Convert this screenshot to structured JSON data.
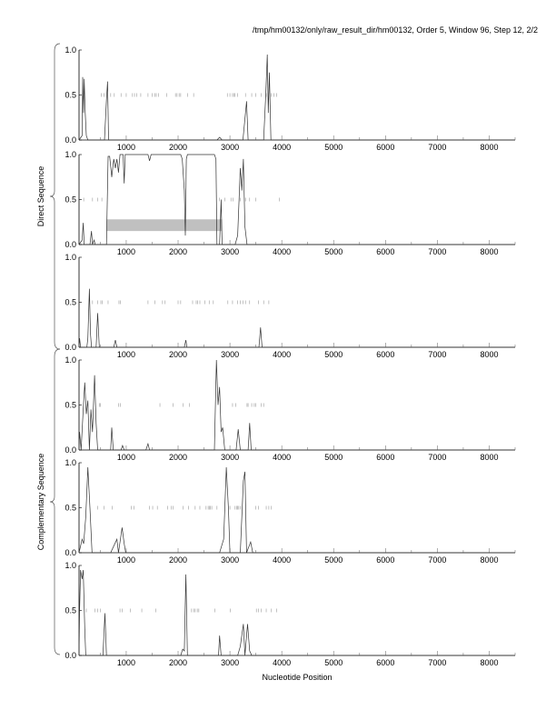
{
  "title": "/tmp/hm00132/only/raw_result_dir/hm00132, Order 5, Window 96, Step 12, 2/2",
  "chart_data": {
    "type": "line",
    "xlabel": "Nucleotide Position",
    "xlim": [
      90,
      8500
    ],
    "ylim": [
      0,
      1
    ],
    "xticks": [
      1000,
      2000,
      3000,
      4000,
      5000,
      6000,
      7000,
      8000
    ],
    "xtick_labels": [
      "1000",
      "2000",
      "3000",
      "4000",
      "5000",
      "6000",
      "7000",
      "8000"
    ],
    "yticks": [
      0,
      0.5,
      1
    ],
    "ytick_labels": [
      "0.0",
      "0.5",
      "1.0"
    ],
    "groups": [
      {
        "label": "Direct Sequence",
        "panels": [
          0,
          1,
          2
        ]
      },
      {
        "label": "Complementary Sequence",
        "panels": [
          3,
          4,
          5
        ]
      }
    ],
    "line_color": "#333333",
    "marker_color": "#999999",
    "region_color": "#c0c0c0",
    "panels": [
      {
        "points": [
          [
            90,
            0
          ],
          [
            150,
            0.05
          ],
          [
            160,
            0.7
          ],
          [
            175,
            0.3
          ],
          [
            190,
            0.68
          ],
          [
            205,
            0.35
          ],
          [
            230,
            0.05
          ],
          [
            260,
            0
          ],
          [
            580,
            0
          ],
          [
            620,
            0.45
          ],
          [
            640,
            0.65
          ],
          [
            660,
            0
          ],
          [
            2750,
            0
          ],
          [
            2800,
            0.03
          ],
          [
            2850,
            0
          ],
          [
            3250,
            0
          ],
          [
            3320,
            0.43
          ],
          [
            3350,
            0
          ],
          [
            3650,
            0
          ],
          [
            3690,
            0.5
          ],
          [
            3720,
            0.95
          ],
          [
            3740,
            0.3
          ],
          [
            3760,
            0.75
          ],
          [
            3790,
            0
          ],
          [
            8500,
            0
          ]
        ],
        "stop_markers": [
          520,
          570,
          700,
          770,
          900,
          1000,
          1120,
          1160,
          1200,
          1280,
          1420,
          1500,
          1550,
          1580,
          1620,
          1780,
          1950,
          1980,
          2020,
          2050,
          2180,
          2300,
          2950,
          3000,
          3050,
          3080,
          3100,
          3150,
          3300,
          3420,
          3500,
          3600,
          3700,
          3800,
          3850,
          3900
        ],
        "regions": []
      },
      {
        "points": [
          [
            90,
            0
          ],
          [
            150,
            0.05
          ],
          [
            170,
            0.24
          ],
          [
            190,
            0
          ],
          [
            300,
            0
          ],
          [
            330,
            0.15
          ],
          [
            350,
            0
          ],
          [
            380,
            0.05
          ],
          [
            400,
            0
          ],
          [
            620,
            0
          ],
          [
            650,
            0.98
          ],
          [
            680,
            0.98
          ],
          [
            720,
            0.75
          ],
          [
            760,
            0.95
          ],
          [
            790,
            0.85
          ],
          [
            820,
            0.95
          ],
          [
            850,
            0.8
          ],
          [
            880,
            1
          ],
          [
            940,
            1
          ],
          [
            960,
            0.68
          ],
          [
            980,
            1
          ],
          [
            1420,
            1
          ],
          [
            1450,
            0.93
          ],
          [
            1480,
            1
          ],
          [
            2050,
            1
          ],
          [
            2080,
            0.95
          ],
          [
            2120,
            0.6
          ],
          [
            2140,
            0.1
          ],
          [
            2160,
            0.95
          ],
          [
            2180,
            1
          ],
          [
            2700,
            1
          ],
          [
            2730,
            0.95
          ],
          [
            2750,
            0
          ],
          [
            2800,
            0
          ],
          [
            2830,
            0.5
          ],
          [
            2850,
            0
          ],
          [
            3100,
            0
          ],
          [
            3150,
            0.1
          ],
          [
            3200,
            0.85
          ],
          [
            3230,
            0.6
          ],
          [
            3260,
            0.95
          ],
          [
            3290,
            0.2
          ],
          [
            3330,
            0
          ],
          [
            8500,
            0
          ]
        ],
        "stop_markers": [
          180,
          350,
          450,
          530,
          2800,
          2900,
          3020,
          3060,
          3200,
          3300,
          3380,
          3500,
          3950
        ],
        "regions": [
          {
            "start": 620,
            "end": 2850,
            "y0": 0.15,
            "y1": 0.28
          }
        ]
      },
      {
        "points": [
          [
            90,
            0
          ],
          [
            100,
            0.1
          ],
          [
            120,
            0
          ],
          [
            240,
            0
          ],
          [
            260,
            0.1
          ],
          [
            290,
            0.65
          ],
          [
            310,
            0.15
          ],
          [
            330,
            0
          ],
          [
            420,
            0
          ],
          [
            450,
            0.38
          ],
          [
            480,
            0
          ],
          [
            760,
            0
          ],
          [
            790,
            0.08
          ],
          [
            820,
            0
          ],
          [
            2120,
            0
          ],
          [
            2150,
            0.08
          ],
          [
            2170,
            0
          ],
          [
            3560,
            0
          ],
          [
            3590,
            0.22
          ],
          [
            3620,
            0
          ],
          [
            8500,
            0
          ]
        ],
        "stop_markers": [
          350,
          450,
          510,
          540,
          650,
          860,
          890,
          1420,
          1550,
          1700,
          1750,
          2000,
          2050,
          2280,
          2350,
          2380,
          2420,
          2520,
          2600,
          2680,
          2960,
          3050,
          3150,
          3200,
          3250,
          3300,
          3380,
          3550,
          3650,
          3750
        ],
        "regions": []
      },
      {
        "points": [
          [
            90,
            0
          ],
          [
            100,
            0.2
          ],
          [
            130,
            0
          ],
          [
            170,
            0.45
          ],
          [
            200,
            0.75
          ],
          [
            230,
            0.4
          ],
          [
            260,
            0.55
          ],
          [
            290,
            0
          ],
          [
            320,
            0.45
          ],
          [
            350,
            0.2
          ],
          [
            390,
            0.83
          ],
          [
            420,
            0.3
          ],
          [
            450,
            0
          ],
          [
            700,
            0
          ],
          [
            720,
            0.25
          ],
          [
            750,
            0
          ],
          [
            900,
            0
          ],
          [
            930,
            0.05
          ],
          [
            960,
            0
          ],
          [
            1380,
            0
          ],
          [
            1420,
            0.07
          ],
          [
            1450,
            0
          ],
          [
            2700,
            0
          ],
          [
            2740,
            1
          ],
          [
            2770,
            0.5
          ],
          [
            2800,
            0.7
          ],
          [
            2830,
            0.2
          ],
          [
            2860,
            0.25
          ],
          [
            2900,
            0
          ],
          [
            3120,
            0
          ],
          [
            3160,
            0.23
          ],
          [
            3200,
            0
          ],
          [
            3350,
            0
          ],
          [
            3380,
            0.3
          ],
          [
            3410,
            0
          ],
          [
            8500,
            0
          ]
        ],
        "stop_markers": [
          480,
          500,
          850,
          890,
          1650,
          1900,
          2100,
          2220,
          3050,
          3110,
          3330,
          3350,
          3420,
          3470,
          3500,
          3600,
          3650
        ],
        "regions": []
      },
      {
        "points": [
          [
            90,
            0
          ],
          [
            150,
            0.15
          ],
          [
            180,
            0.1
          ],
          [
            220,
            0.4
          ],
          [
            260,
            0.95
          ],
          [
            300,
            0.5
          ],
          [
            340,
            0
          ],
          [
            700,
            0
          ],
          [
            820,
            0.15
          ],
          [
            850,
            0
          ],
          [
            920,
            0.28
          ],
          [
            960,
            0.1
          ],
          [
            990,
            0
          ],
          [
            2800,
            0
          ],
          [
            2880,
            0.15
          ],
          [
            2930,
            0.95
          ],
          [
            2970,
            0.5
          ],
          [
            3000,
            0
          ],
          [
            3200,
            0
          ],
          [
            3260,
            0.8
          ],
          [
            3290,
            0.9
          ],
          [
            3320,
            0
          ],
          [
            3400,
            0.12
          ],
          [
            3440,
            0
          ],
          [
            8500,
            0
          ]
        ],
        "stop_markers": [
          450,
          570,
          730,
          1100,
          1150,
          1450,
          1510,
          1600,
          1800,
          1870,
          1900,
          2100,
          2200,
          2330,
          2420,
          2540,
          2580,
          2600,
          2620,
          2650,
          2750,
          3000,
          3100,
          3130,
          3150,
          3170,
          3200,
          3500,
          3550,
          3700,
          3750,
          3800
        ],
        "regions": []
      },
      {
        "points": [
          [
            90,
            0
          ],
          [
            100,
            0.5
          ],
          [
            120,
            0.95
          ],
          [
            150,
            0.85
          ],
          [
            170,
            0.95
          ],
          [
            200,
            0.3
          ],
          [
            220,
            0
          ],
          [
            550,
            0
          ],
          [
            590,
            0.47
          ],
          [
            620,
            0
          ],
          [
            2050,
            0
          ],
          [
            2090,
            0.07
          ],
          [
            2120,
            0.05
          ],
          [
            2150,
            0.9
          ],
          [
            2180,
            0
          ],
          [
            2780,
            0
          ],
          [
            2800,
            0.22
          ],
          [
            2830,
            0
          ],
          [
            3150,
            0
          ],
          [
            3200,
            0.1
          ],
          [
            3260,
            0.35
          ],
          [
            3290,
            0
          ],
          [
            3340,
            0.35
          ],
          [
            3380,
            0.05
          ],
          [
            3420,
            0
          ],
          [
            8500,
            0
          ]
        ],
        "stop_markers": [
          230,
          400,
          450,
          500,
          880,
          920,
          1080,
          1300,
          1570,
          2260,
          2300,
          2330,
          2370,
          2400,
          2710,
          3010,
          3510,
          3550,
          3600,
          3700,
          3800,
          3900
        ],
        "regions": []
      }
    ]
  }
}
